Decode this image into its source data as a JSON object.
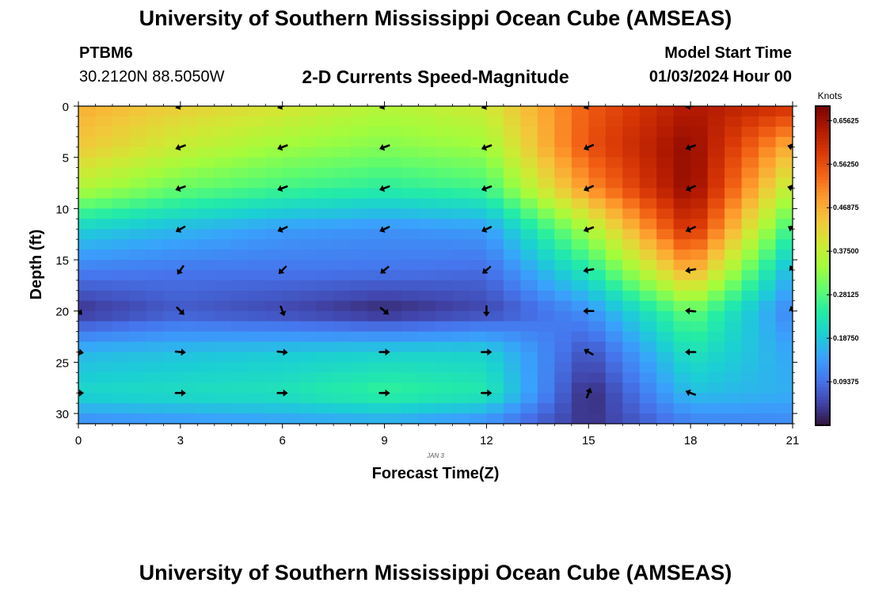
{
  "header": {
    "title": "University of Southern Mississippi Ocean Cube (AMSEAS)",
    "station": "PTBM6",
    "coords": "30.2120N  88.5050W",
    "subtitle": "2-D Currents Speed-Magnitude",
    "model_start_label": "Model Start Time",
    "model_start_value": "01/03/2024 Hour 00"
  },
  "footer": {
    "title": "University of Southern Mississippi Ocean Cube (AMSEAS)"
  },
  "chart_data": {
    "type": "heatmap",
    "title": "2-D Currents Speed-Magnitude",
    "xlabel": "Forecast Time(Z)",
    "ylabel": "Depth (ft)",
    "date_label": "JAN 3",
    "xlim": [
      0,
      21
    ],
    "ylim": [
      0,
      31
    ],
    "xticks": [
      0,
      3,
      6,
      9,
      12,
      15,
      18,
      21
    ],
    "yticks": [
      0,
      5,
      10,
      15,
      20,
      25,
      30
    ],
    "colorbar": {
      "label": "Knots",
      "min": 0.0,
      "max": 0.6875,
      "ticks": [
        "0.09375",
        "0.18750",
        "0.28125",
        "0.37500",
        "0.46875",
        "0.56250",
        "0.65625"
      ],
      "colors": [
        "#30123b",
        "#4145ab",
        "#4675ed",
        "#39a2fc",
        "#1bcfd4",
        "#24eca6",
        "#61fc6c",
        "#a4fc3b",
        "#d1e834",
        "#f3c63a",
        "#fe9b2d",
        "#f36315",
        "#d93806",
        "#b11901",
        "#7a0402"
      ]
    },
    "speed_grid": {
      "times": [
        0,
        3,
        6,
        9,
        12,
        15,
        18,
        21
      ],
      "depths": [
        0,
        4,
        8,
        12,
        16,
        20,
        24,
        28,
        31
      ],
      "values": [
        [
          0.47,
          0.43,
          0.4,
          0.36,
          0.39,
          0.55,
          0.64,
          0.6
        ],
        [
          0.44,
          0.38,
          0.34,
          0.32,
          0.34,
          0.56,
          0.67,
          0.46
        ],
        [
          0.36,
          0.3,
          0.27,
          0.25,
          0.27,
          0.5,
          0.67,
          0.36
        ],
        [
          0.2,
          0.17,
          0.14,
          0.13,
          0.14,
          0.35,
          0.61,
          0.25
        ],
        [
          0.11,
          0.1,
          0.1,
          0.1,
          0.09,
          0.24,
          0.48,
          0.16
        ],
        [
          0.03,
          0.07,
          0.05,
          0.02,
          0.05,
          0.13,
          0.3,
          0.11
        ],
        [
          0.17,
          0.18,
          0.19,
          0.2,
          0.2,
          0.06,
          0.23,
          0.15
        ],
        [
          0.21,
          0.22,
          0.23,
          0.26,
          0.24,
          0.02,
          0.18,
          0.16
        ],
        [
          0.12,
          0.13,
          0.14,
          0.15,
          0.12,
          0.03,
          0.11,
          0.12
        ]
      ]
    },
    "vectors": [
      {
        "t": 3,
        "depth": 0,
        "dir": 250
      },
      {
        "t": 6,
        "depth": 0,
        "dir": 250
      },
      {
        "t": 9,
        "depth": 0,
        "dir": 250
      },
      {
        "t": 12,
        "depth": 0,
        "dir": 250
      },
      {
        "t": 15,
        "depth": 0,
        "dir": 250
      },
      {
        "t": 18,
        "depth": 0,
        "dir": 260
      },
      {
        "t": 3,
        "depth": 4,
        "dir": 250
      },
      {
        "t": 6,
        "depth": 4,
        "dir": 250
      },
      {
        "t": 9,
        "depth": 4,
        "dir": 250
      },
      {
        "t": 12,
        "depth": 4,
        "dir": 250
      },
      {
        "t": 15,
        "depth": 4,
        "dir": 245
      },
      {
        "t": 18,
        "depth": 4,
        "dir": 250
      },
      {
        "t": 21,
        "depth": 4,
        "dir": 285
      },
      {
        "t": 3,
        "depth": 8,
        "dir": 250
      },
      {
        "t": 6,
        "depth": 8,
        "dir": 250
      },
      {
        "t": 9,
        "depth": 8,
        "dir": 250
      },
      {
        "t": 12,
        "depth": 8,
        "dir": 250
      },
      {
        "t": 15,
        "depth": 8,
        "dir": 245
      },
      {
        "t": 18,
        "depth": 8,
        "dir": 245
      },
      {
        "t": 21,
        "depth": 8,
        "dir": 285
      },
      {
        "t": 3,
        "depth": 12,
        "dir": 240
      },
      {
        "t": 6,
        "depth": 12,
        "dir": 245
      },
      {
        "t": 9,
        "depth": 12,
        "dir": 245
      },
      {
        "t": 12,
        "depth": 12,
        "dir": 245
      },
      {
        "t": 15,
        "depth": 12,
        "dir": 250
      },
      {
        "t": 18,
        "depth": 12,
        "dir": 245
      },
      {
        "t": 21,
        "depth": 12,
        "dir": 300
      },
      {
        "t": 3,
        "depth": 16,
        "dir": 215
      },
      {
        "t": 6,
        "depth": 16,
        "dir": 225
      },
      {
        "t": 9,
        "depth": 16,
        "dir": 230
      },
      {
        "t": 12,
        "depth": 16,
        "dir": 230
      },
      {
        "t": 15,
        "depth": 16,
        "dir": 260
      },
      {
        "t": 18,
        "depth": 16,
        "dir": 260
      },
      {
        "t": 21,
        "depth": 16,
        "dir": 330
      },
      {
        "t": 0,
        "depth": 20,
        "dir": 135
      },
      {
        "t": 3,
        "depth": 20,
        "dir": 135
      },
      {
        "t": 6,
        "depth": 20,
        "dir": 160
      },
      {
        "t": 9,
        "depth": 20,
        "dir": 130
      },
      {
        "t": 12,
        "depth": 20,
        "dir": 180
      },
      {
        "t": 15,
        "depth": 20,
        "dir": 270
      },
      {
        "t": 18,
        "depth": 20,
        "dir": 275
      },
      {
        "t": 21,
        "depth": 20,
        "dir": 340
      },
      {
        "t": 0,
        "depth": 24,
        "dir": 100
      },
      {
        "t": 3,
        "depth": 24,
        "dir": 95
      },
      {
        "t": 6,
        "depth": 24,
        "dir": 95
      },
      {
        "t": 9,
        "depth": 24,
        "dir": 90
      },
      {
        "t": 12,
        "depth": 24,
        "dir": 90
      },
      {
        "t": 15,
        "depth": 24,
        "dir": 300
      },
      {
        "t": 18,
        "depth": 24,
        "dir": 270
      },
      {
        "t": 0,
        "depth": 28,
        "dir": 90
      },
      {
        "t": 3,
        "depth": 28,
        "dir": 90
      },
      {
        "t": 6,
        "depth": 28,
        "dir": 90
      },
      {
        "t": 9,
        "depth": 28,
        "dir": 90
      },
      {
        "t": 12,
        "depth": 28,
        "dir": 90
      },
      {
        "t": 15,
        "depth": 28,
        "dir": 20
      },
      {
        "t": 18,
        "depth": 28,
        "dir": 290
      }
    ]
  }
}
